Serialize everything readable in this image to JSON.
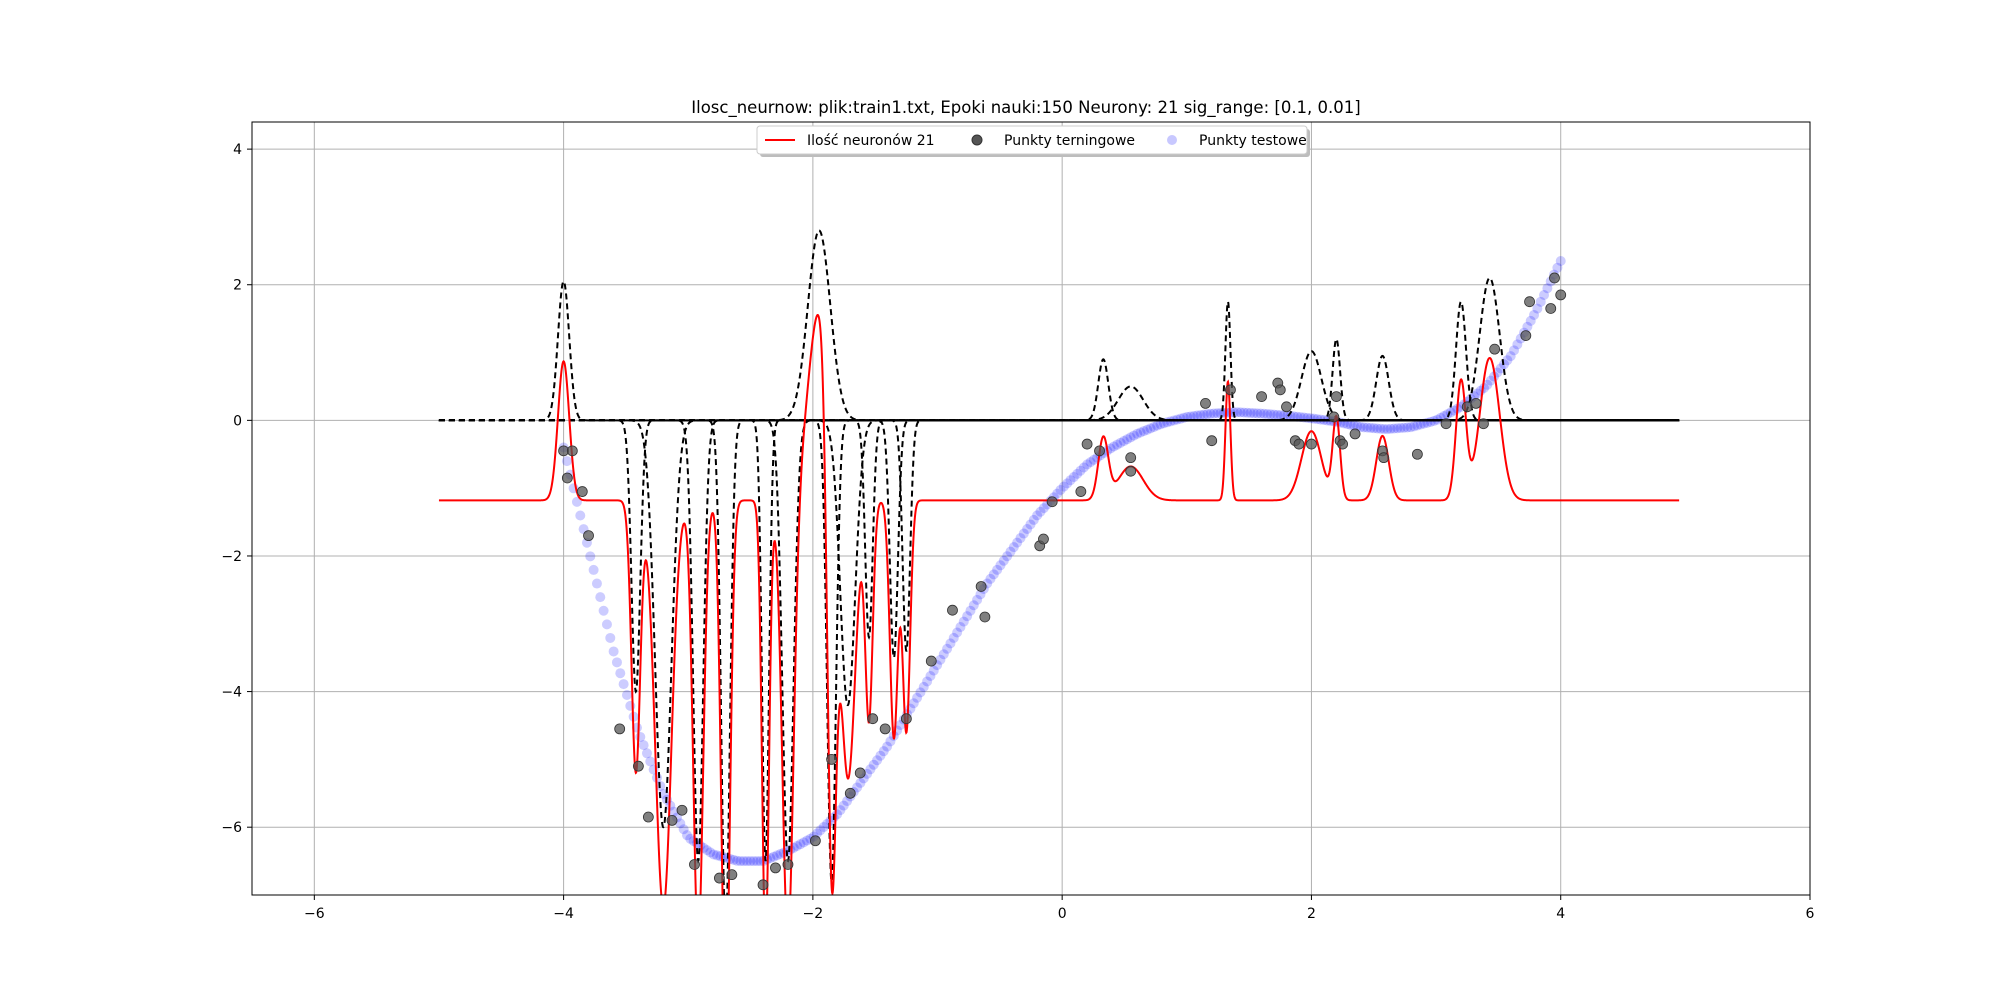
{
  "chart_data": {
    "type": "line",
    "title": "Ilosc_neurnow: plik:train1.txt, Epoki nauki:150 Neurony: 21 sig_range: [0.1, 0.01]",
    "xlabel": "",
    "ylabel": "",
    "xlim": [
      -6.5,
      6
    ],
    "ylim": [
      -7,
      4.4
    ],
    "xticks": [
      -6,
      -4,
      -2,
      0,
      2,
      4,
      6
    ],
    "yticks": [
      4,
      2,
      0,
      -2,
      -4,
      -6
    ],
    "xtick_labels": [
      "−6",
      "−4",
      "−2",
      "0",
      "2",
      "4",
      "6"
    ],
    "ytick_labels": [
      "4",
      "2",
      "0",
      "−2",
      "−4",
      "−6"
    ],
    "grid": true,
    "legend_position": "top-center",
    "legend": [
      {
        "label": "Ilość neuronów 21",
        "kind": "line",
        "color": "#ff0000"
      },
      {
        "label": "Punkty terningowe",
        "kind": "marker",
        "color": "#555555"
      },
      {
        "label": "Punkty testowe",
        "kind": "marker",
        "color": "#c8c8ff"
      }
    ],
    "model": {
      "bias": -1.18,
      "x_range": [
        -5,
        4.95
      ],
      "neurons": [
        {
          "c": -4.0,
          "w": 2.05,
          "s": 0.045
        },
        {
          "c": -3.42,
          "w": -4.0,
          "s": 0.035
        },
        {
          "c": -3.2,
          "w": -6.0,
          "s": 0.065
        },
        {
          "c": -2.92,
          "w": -6.5,
          "s": 0.04
        },
        {
          "c": -2.7,
          "w": -7.5,
          "s": 0.035
        },
        {
          "c": -2.38,
          "w": -6.5,
          "s": 0.028
        },
        {
          "c": -2.2,
          "w": -6.5,
          "s": 0.045
        },
        {
          "c": -1.95,
          "w": 2.8,
          "s": 0.09
        },
        {
          "c": -1.85,
          "w": -6.8,
          "s": 0.035
        },
        {
          "c": -1.72,
          "w": -4.2,
          "s": 0.06
        },
        {
          "c": -1.55,
          "w": -3.2,
          "s": 0.03
        },
        {
          "c": -1.35,
          "w": -3.5,
          "s": 0.032
        },
        {
          "c": -1.25,
          "w": -3.4,
          "s": 0.03
        },
        {
          "c": 0.33,
          "w": 0.9,
          "s": 0.04
        },
        {
          "c": 0.55,
          "w": 0.5,
          "s": 0.1
        },
        {
          "c": 1.33,
          "w": 1.75,
          "s": 0.02
        },
        {
          "c": 2.0,
          "w": 1.02,
          "s": 0.08
        },
        {
          "c": 2.2,
          "w": 1.2,
          "s": 0.03
        },
        {
          "c": 2.57,
          "w": 0.95,
          "s": 0.05
        },
        {
          "c": 3.2,
          "w": 1.75,
          "s": 0.04
        },
        {
          "c": 3.43,
          "w": 2.1,
          "s": 0.08
        }
      ]
    },
    "series": [
      {
        "name": "Ilość neuronów 21",
        "kind": "line",
        "color": "#ff0000",
        "description_of_values": "sum of model neurons + bias evaluated on x_range"
      },
      {
        "name": "Punkty terningowe",
        "kind": "scatter",
        "color": "#555555",
        "x": [
          -4.0,
          -3.97,
          -3.93,
          -3.85,
          -3.8,
          -3.55,
          -3.4,
          -3.32,
          -3.13,
          -3.05,
          -2.95,
          -2.75,
          -2.65,
          -2.4,
          -2.3,
          -2.2,
          -1.98,
          -1.85,
          -1.7,
          -1.62,
          -1.52,
          -1.42,
          -1.25,
          -1.05,
          -0.88,
          -0.65,
          -0.62,
          -0.18,
          -0.15,
          -0.08,
          0.15,
          0.2,
          0.3,
          0.55,
          0.55,
          1.15,
          1.2,
          1.35,
          1.6,
          1.73,
          1.75,
          1.8,
          1.87,
          1.9,
          2.0,
          2.18,
          2.2,
          2.23,
          2.25,
          2.35,
          2.57,
          2.58,
          2.85,
          3.08,
          3.25,
          3.32,
          3.38,
          3.47,
          3.72,
          3.75,
          3.92,
          3.95,
          4.0
        ],
        "y": [
          -0.45,
          -0.85,
          -0.45,
          -1.05,
          -1.7,
          -4.55,
          -5.1,
          -5.85,
          -5.9,
          -5.75,
          -6.55,
          -6.75,
          -6.7,
          -6.85,
          -6.6,
          -6.55,
          -6.2,
          -5.0,
          -5.5,
          -5.2,
          -4.4,
          -4.55,
          -4.4,
          -3.55,
          -2.8,
          -2.45,
          -2.9,
          -1.85,
          -1.75,
          -1.2,
          -1.05,
          -0.35,
          -0.45,
          -0.55,
          -0.75,
          0.25,
          -0.3,
          0.45,
          0.35,
          0.55,
          0.45,
          0.2,
          -0.3,
          -0.35,
          -0.35,
          0.05,
          0.35,
          -0.3,
          -0.35,
          -0.2,
          -0.45,
          -0.55,
          -0.5,
          -0.05,
          0.2,
          0.25,
          -0.05,
          1.05,
          1.25,
          1.75,
          1.65,
          2.1,
          1.85
        ]
      },
      {
        "name": "Punkty testowe",
        "kind": "scatter",
        "color": "#0000ff",
        "alpha": 0.2,
        "x_range": [
          -4,
          4
        ],
        "count": 300,
        "curve_anchor_points": [
          [
            -4,
            -0.4
          ],
          [
            -3.8,
            -1.9
          ],
          [
            -3.6,
            -3.4
          ],
          [
            -3.4,
            -4.6
          ],
          [
            -3.2,
            -5.5
          ],
          [
            -3.0,
            -6.15
          ],
          [
            -2.8,
            -6.4
          ],
          [
            -2.6,
            -6.5
          ],
          [
            -2.4,
            -6.5
          ],
          [
            -2.2,
            -6.35
          ],
          [
            -2.0,
            -6.15
          ],
          [
            -1.8,
            -5.8
          ],
          [
            -1.6,
            -5.3
          ],
          [
            -1.4,
            -4.8
          ],
          [
            -1.2,
            -4.2
          ],
          [
            -1.0,
            -3.6
          ],
          [
            -0.8,
            -3.0
          ],
          [
            -0.6,
            -2.4
          ],
          [
            -0.4,
            -1.9
          ],
          [
            -0.2,
            -1.4
          ],
          [
            0.0,
            -1.0
          ],
          [
            0.2,
            -0.65
          ],
          [
            0.4,
            -0.4
          ],
          [
            0.6,
            -0.2
          ],
          [
            0.8,
            -0.05
          ],
          [
            1.0,
            0.05
          ],
          [
            1.2,
            0.1
          ],
          [
            1.4,
            0.12
          ],
          [
            1.6,
            0.1
          ],
          [
            1.8,
            0.07
          ],
          [
            2.0,
            0.03
          ],
          [
            2.2,
            -0.02
          ],
          [
            2.4,
            -0.1
          ],
          [
            2.6,
            -0.13
          ],
          [
            2.8,
            -0.1
          ],
          [
            3.0,
            0.0
          ],
          [
            3.2,
            0.2
          ],
          [
            3.4,
            0.5
          ],
          [
            3.6,
            0.95
          ],
          [
            3.8,
            1.6
          ],
          [
            4.0,
            2.35
          ]
        ]
      },
      {
        "name": "neuron components",
        "kind": "dashed-lines",
        "color": "#000000",
        "description_of_values": "each model neuron's weighted gaussian on x_range"
      }
    ]
  }
}
